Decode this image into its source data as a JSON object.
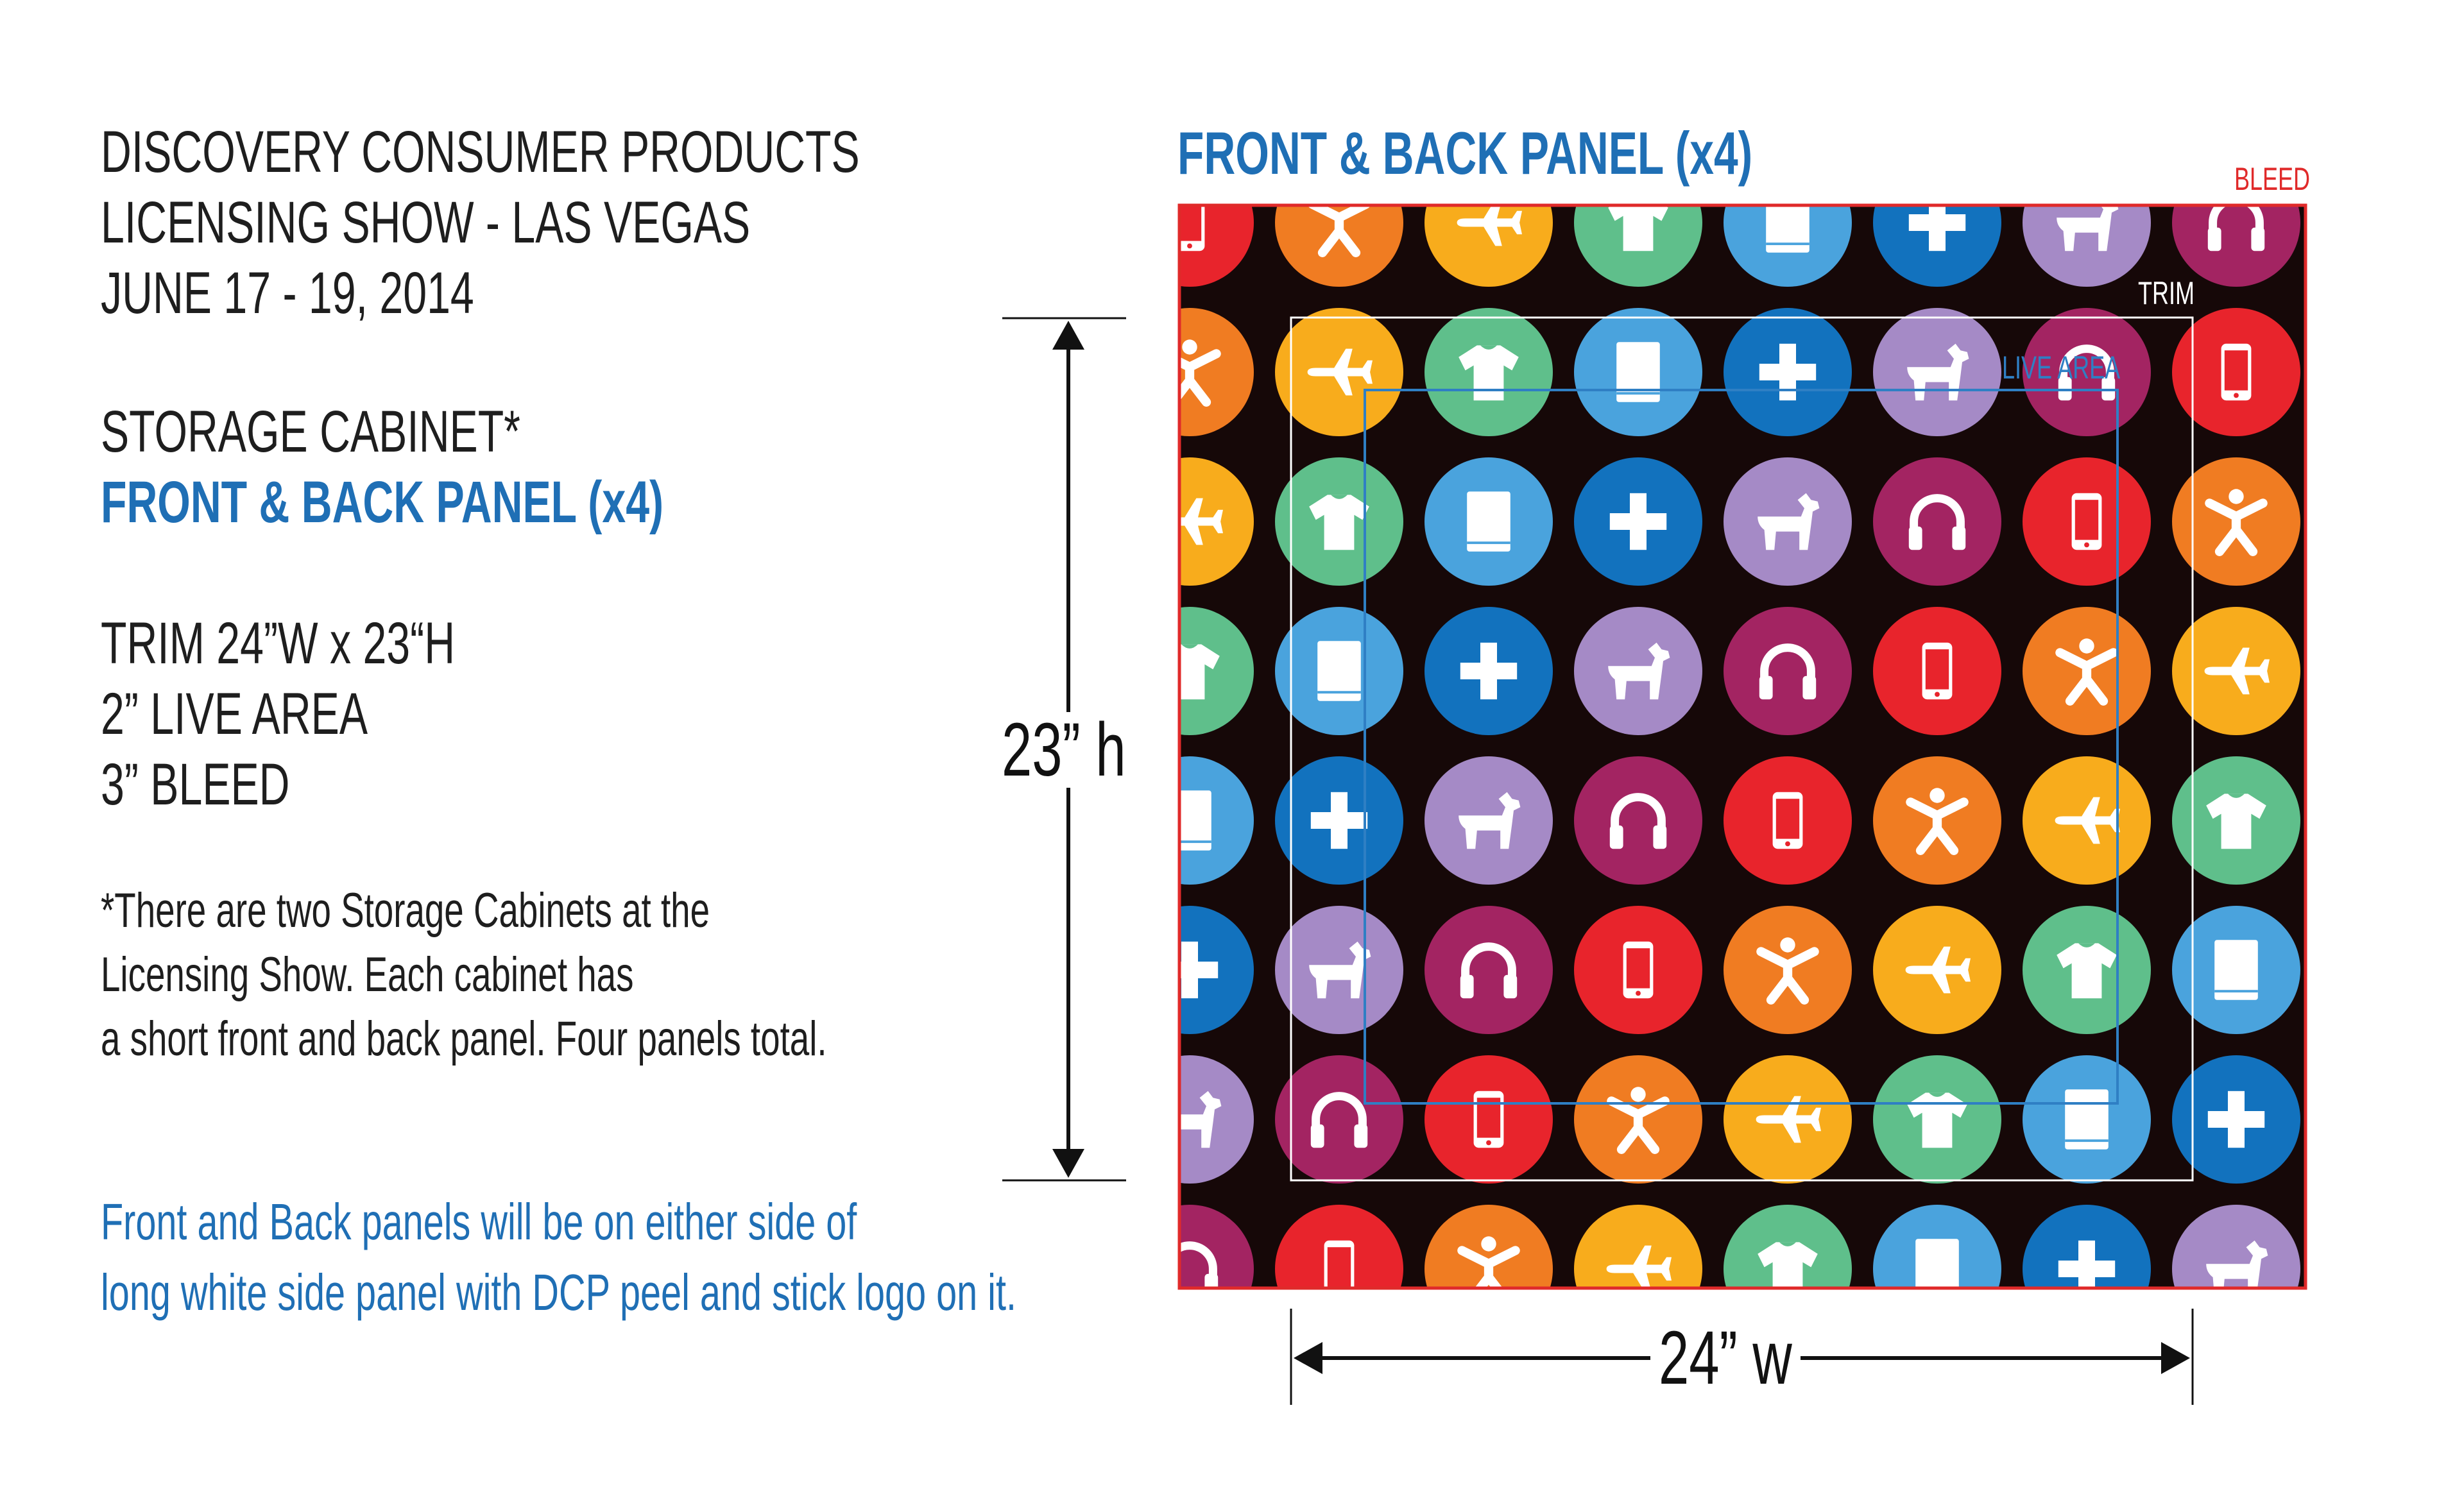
{
  "info": {
    "line1": "DISCOVERY CONSUMER PRODUCTS",
    "line2": "LICENSING SHOW - LAS VEGAS",
    "line3": "JUNE 17 - 19, 2014",
    "item": "STORAGE CABINET*",
    "panel": "FRONT & BACK PANEL (x4)",
    "spec1": "TRIM 24”W x 23“H",
    "spec2": "2” LIVE AREA",
    "spec3": "3” BLEED",
    "note1": "*There are two Storage Cabinets at the",
    "note2": "Licensing Show. Each cabinet has",
    "note3": "a short front and back panel. Four panels total.",
    "blue_note1": "Front and Back panels will be on either side of",
    "blue_note2": "long white side panel with DCP peel and stick logo on it."
  },
  "diagram": {
    "title": "FRONT & BACK PANEL (x4)",
    "bleed_label": "BLEED",
    "trim_label": "TRIM",
    "live_label": "LIVE AREA",
    "height_label": "23” h",
    "width_label": "24” w"
  },
  "colors": {
    "background": "#160808",
    "bleed": "#e02a2a",
    "live": "#2f7fc4",
    "trim": "#ffffff",
    "text_blue": "#1f6fb5",
    "circle_palette": {
      "red": "#e8242c",
      "orange": "#f07c22",
      "yellow": "#f8ac1c",
      "green": "#5fbf8b",
      "sky": "#4aa3dd",
      "blue": "#1272be",
      "lavender": "#a58ac6",
      "maroon": "#a32462"
    }
  },
  "pattern": {
    "cycle": [
      "phone-icon",
      "person-icon",
      "airplane-icon",
      "shirt-icon",
      "book-icon",
      "plus-icon",
      "dog-icon",
      "headphones-icon"
    ],
    "cycle_colors": [
      "red",
      "orange",
      "yellow",
      "green",
      "sky",
      "blue",
      "lavender",
      "maroon"
    ],
    "rows": 8,
    "cols": 8
  }
}
